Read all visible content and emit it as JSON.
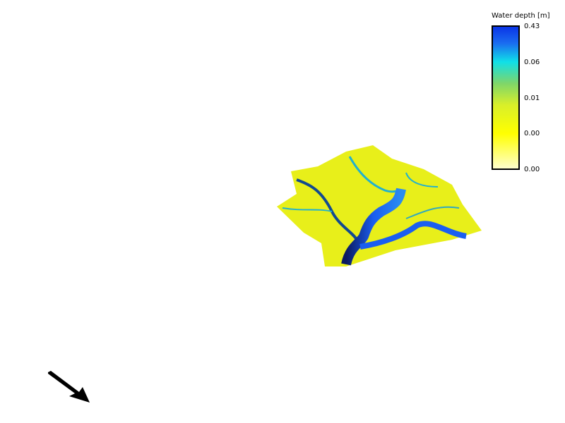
{
  "legend": {
    "title": "Water depth [m]",
    "ticks": [
      "0.43",
      "0.06",
      "0.01",
      "0.00",
      "0.00"
    ]
  }
}
